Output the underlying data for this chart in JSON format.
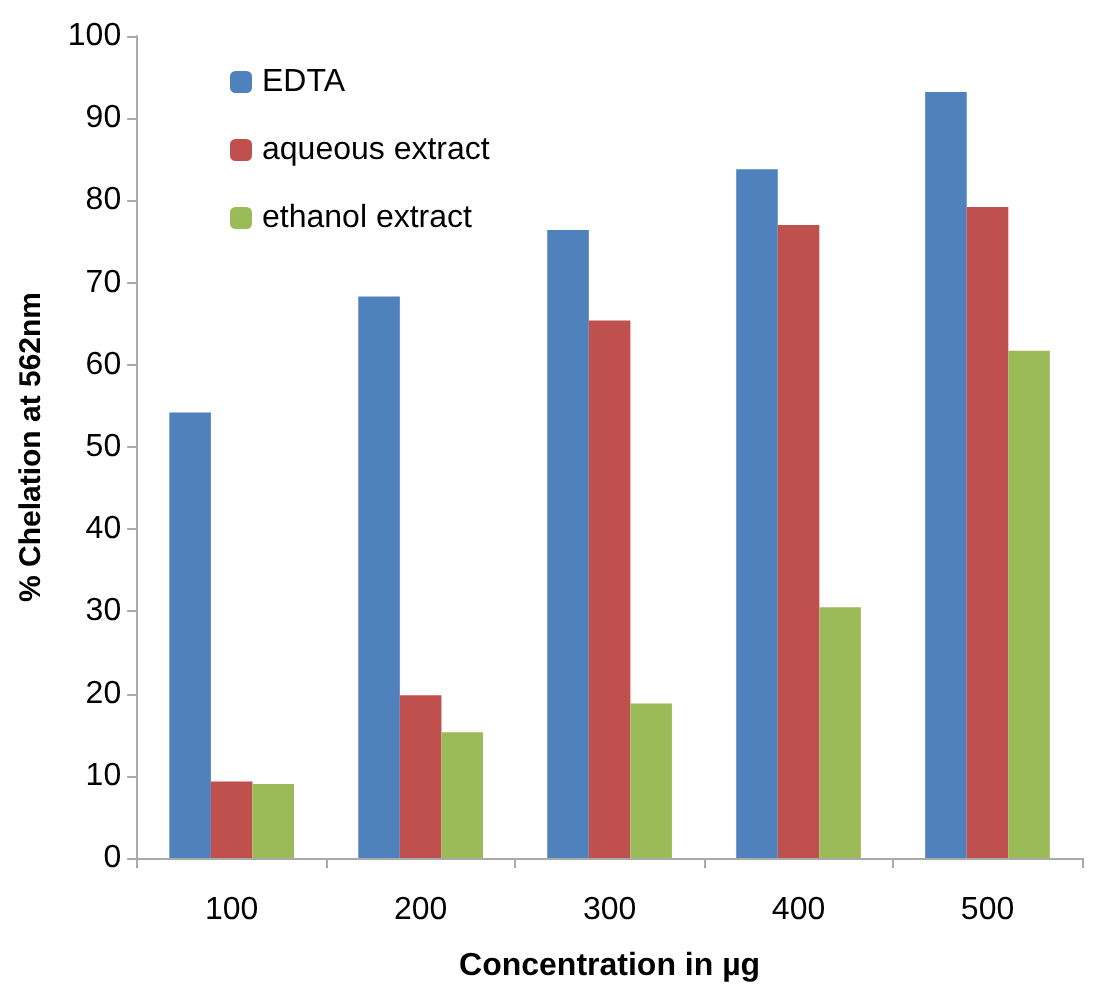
{
  "chart_data": {
    "type": "bar",
    "xlabel": "Concentration in µg",
    "ylabel": "% Chelation at 562nm",
    "categories": [
      "100",
      "200",
      "300",
      "400",
      "500"
    ],
    "series": [
      {
        "name": "EDTA",
        "color": "#4f81bd",
        "values": [
          54.2,
          68.3,
          76.4,
          83.8,
          93.2
        ]
      },
      {
        "name": "aqueous extract",
        "color": "#c0504d",
        "values": [
          9.3,
          19.8,
          65.4,
          77.0,
          79.2
        ]
      },
      {
        "name": "ethanol extract",
        "color": "#9bbb59",
        "values": [
          9.0,
          15.3,
          18.8,
          30.5,
          61.7
        ]
      }
    ],
    "ylim": [
      0,
      100
    ],
    "yticks": [
      0,
      10,
      20,
      30,
      40,
      50,
      60,
      70,
      80,
      90,
      100
    ],
    "grid": false,
    "legend": "top left"
  }
}
